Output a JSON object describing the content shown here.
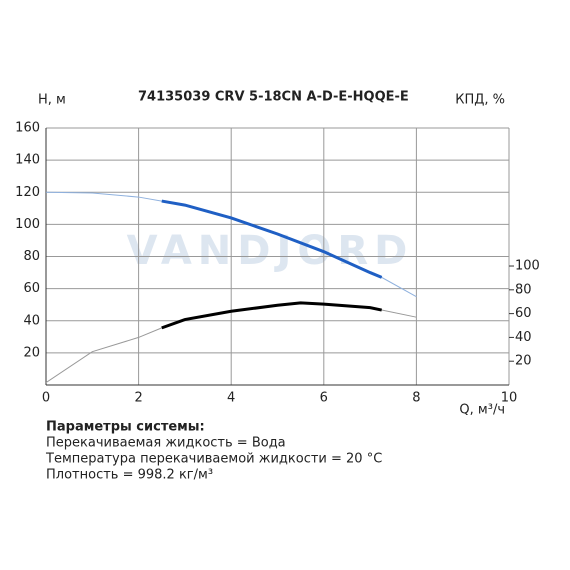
{
  "chart_data": {
    "type": "line",
    "title": "74135039 CRV 5-18CN A-D-E-HQQE-E",
    "ylabel": "H, м",
    "y2label": "КПД, %",
    "xlabel": "Q, м³/ч",
    "watermark": "VANDJORD",
    "xlim": [
      0,
      10
    ],
    "xticks": [
      0,
      2,
      4,
      6,
      8,
      10
    ],
    "ylim": [
      0,
      160
    ],
    "yticks": [
      20,
      40,
      60,
      80,
      100,
      120,
      140,
      160
    ],
    "y2lim": [
      0,
      216
    ],
    "y2ticks": [
      20,
      40,
      60,
      80,
      100
    ],
    "grid": true,
    "operating_range": [
      2.5,
      7.25
    ],
    "series": [
      {
        "color": "#1f5fc4",
        "thin_color": "#8fb1de",
        "axis": "y",
        "x": [
          0,
          1,
          2,
          2.5,
          3,
          4,
          5,
          6,
          7,
          7.25,
          8
        ],
        "values": [
          120,
          119.5,
          117,
          114.5,
          112,
          104,
          94,
          83,
          70,
          67,
          55
        ]
      },
      {
        "color": "#000000",
        "thin_color": "#999999",
        "axis": "y2",
        "x": [
          0,
          1,
          2,
          2.5,
          3,
          4,
          5,
          5.5,
          6,
          7,
          7.25,
          8
        ],
        "values": [
          2,
          28,
          40,
          48,
          55,
          62,
          67,
          69,
          68,
          65,
          63,
          57
        ]
      }
    ]
  },
  "parameters": {
    "heading": "Параметры системы:",
    "lines": [
      "Перекачиваемая жидкость = Вода",
      "Температура перекачиваемой жидкости = 20 °C",
      "Плотность = 998.2 кг/м³"
    ]
  }
}
